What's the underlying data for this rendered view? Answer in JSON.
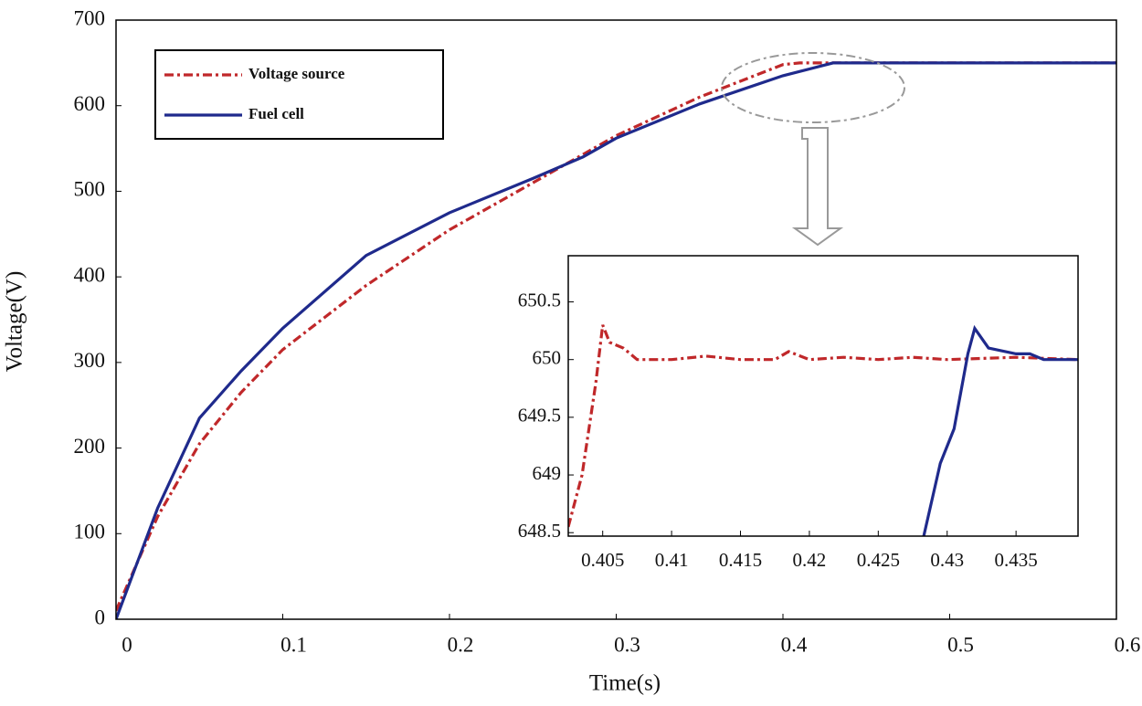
{
  "chart_data": [
    {
      "type": "line",
      "x_label": "Time(s)",
      "y_label": "Voltage(V)",
      "xlim": [
        0,
        0.6
      ],
      "ylim": [
        0,
        700
      ],
      "xticks": [
        0,
        0.1,
        0.2,
        0.3,
        0.4,
        0.5,
        0.6
      ],
      "yticks": [
        0,
        100,
        200,
        300,
        400,
        500,
        600,
        700
      ],
      "legend": "upper left",
      "series": [
        {
          "name": "Voltage source",
          "color": "#c0282a",
          "style": "dashdot",
          "x": [
            0,
            0.025,
            0.05,
            0.075,
            0.1,
            0.15,
            0.2,
            0.25,
            0.3,
            0.35,
            0.4,
            0.41,
            0.6
          ],
          "values": [
            10,
            120,
            205,
            265,
            315,
            390,
            455,
            510,
            565,
            610,
            648,
            650,
            650
          ]
        },
        {
          "name": "Fuel cell",
          "color": "#1f2a8c",
          "style": "solid",
          "x": [
            0,
            0.025,
            0.05,
            0.075,
            0.1,
            0.15,
            0.2,
            0.25,
            0.28,
            0.3,
            0.35,
            0.4,
            0.43,
            0.6
          ],
          "values": [
            0,
            130,
            235,
            290,
            340,
            425,
            475,
            515,
            540,
            562,
            602,
            635,
            650,
            650
          ]
        }
      ]
    },
    {
      "type": "line",
      "xlim": [
        0.4025,
        0.4395
      ],
      "ylim": [
        648.47,
        650.9
      ],
      "xticks": [
        0.405,
        0.41,
        0.415,
        0.42,
        0.425,
        0.43,
        0.435
      ],
      "yticks": [
        648.5,
        649,
        649.5,
        650,
        650.5
      ],
      "series": [
        {
          "color": "#c0282a",
          "style": "dashdot",
          "x": [
            0.4025,
            0.4035,
            0.4045,
            0.405,
            0.4055,
            0.4065,
            0.4075,
            0.41,
            0.4125,
            0.415,
            0.4175,
            0.4185,
            0.42,
            0.4225,
            0.425,
            0.4275,
            0.43,
            0.435,
            0.4395
          ],
          "values": [
            648.55,
            649.0,
            649.8,
            650.3,
            650.15,
            650.1,
            650.0,
            650.0,
            650.03,
            650.0,
            650.0,
            650.07,
            650.0,
            650.02,
            650.0,
            650.02,
            650.0,
            650.02,
            650.0
          ]
        },
        {
          "color": "#1f2a8c",
          "style": "solid",
          "x": [
            0.4283,
            0.4295,
            0.4305,
            0.4315,
            0.432,
            0.433,
            0.435,
            0.436,
            0.437,
            0.4395
          ],
          "values": [
            648.47,
            649.1,
            649.4,
            650.05,
            650.27,
            650.1,
            650.05,
            650.05,
            650.0,
            650.0
          ]
        }
      ]
    }
  ]
}
